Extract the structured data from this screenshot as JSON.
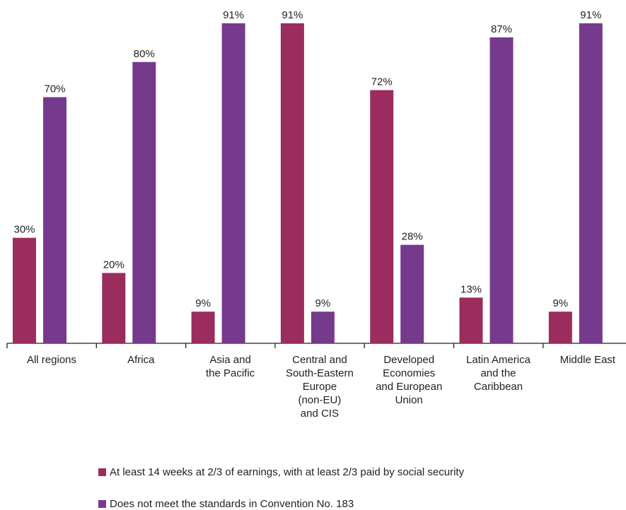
{
  "chart_data": {
    "type": "bar",
    "categories": [
      "All regions",
      "Africa",
      "Asia and the Pacific",
      "Central and South-Eastern Europe (non-EU) and CIS",
      "Developed Economies and European Union",
      "Latin America and the Caribbean",
      "Middle East"
    ],
    "category_lines": [
      [
        "All regions"
      ],
      [
        "Africa"
      ],
      [
        "Asia and",
        "the Pacific"
      ],
      [
        "Central and",
        "South-Eastern",
        "Europe",
        "(non-EU)",
        "and CIS"
      ],
      [
        "Developed",
        "Economies",
        "and European",
        "Union"
      ],
      [
        "Latin America",
        "and the",
        "Caribbean"
      ],
      [
        "Middle East"
      ]
    ],
    "series": [
      {
        "name": "At least 14 weeks at 2/3 of earnings, with at least 2/3 paid by social security",
        "values": [
          30,
          20,
          9,
          91,
          72,
          13,
          9
        ],
        "labels": [
          "30%",
          "20%",
          "9%",
          "91%",
          "72%",
          "13%",
          "9%"
        ],
        "color": "#9b2d5e"
      },
      {
        "name": "Does not meet the standards in Convention No. 183",
        "values": [
          70,
          80,
          91,
          9,
          28,
          87,
          91
        ],
        "labels": [
          "70%",
          "80%",
          "91%",
          "9%",
          "28%",
          "87%",
          "91%"
        ],
        "color": "#763a8c"
      }
    ],
    "ylim": [
      0,
      100
    ],
    "grid": false,
    "legend_position": "bottom-left"
  },
  "legend": {
    "item1": "At least 14 weeks at 2/3 of earnings, with at least 2/3 paid by social security",
    "item2": "Does not meet the standards in Convention No. 183"
  }
}
